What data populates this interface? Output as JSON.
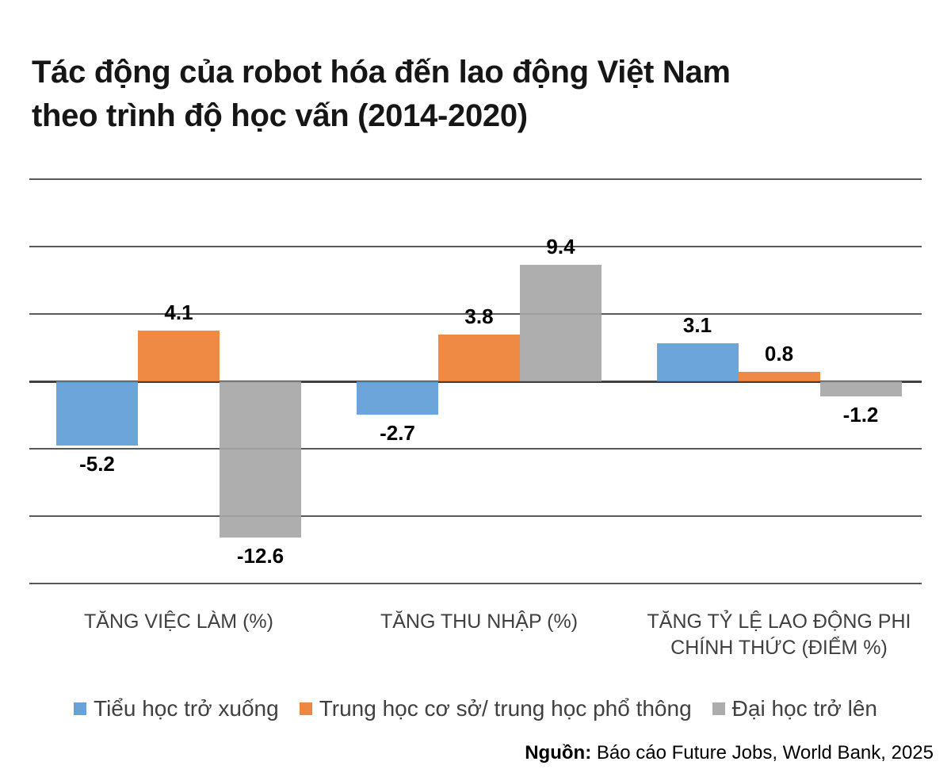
{
  "title": {
    "line1": "Tác động của robot hóa đến lao động Việt Nam",
    "line2": "theo trình độ học vấn (2014-2020)"
  },
  "source": {
    "label": "Nguồn:",
    "text": " Báo cáo Future Jobs, World Bank, 2025"
  },
  "chart_data": {
    "type": "bar",
    "title": "Tác động của robot hóa đến lao động Việt Nam theo trình độ học vấn (2014-2020)",
    "categories": [
      "TĂNG VIỆC LÀM (%)",
      "TĂNG THU NHẬP (%)",
      "TĂNG TỶ LỆ LAO ĐỘNG PHI\nCHÍNH THỨC (ĐIỂM %)"
    ],
    "series": [
      {
        "name": "Tiểu học trở xuống",
        "color": "#5B9BD5",
        "values": [
          -5.2,
          -2.7,
          3.1
        ]
      },
      {
        "name": "Trung học cơ sở/ trung học phổ thông",
        "color": "#ED7D31",
        "values": [
          4.1,
          3.8,
          0.8
        ]
      },
      {
        "name": "Đại học trở lên",
        "color": "#A5A5A5",
        "values": [
          -12.6,
          9.4,
          -1.2
        ]
      }
    ],
    "data_labels_visible": true,
    "value_format_decimals": 1,
    "xlabel": "",
    "ylabel": "",
    "y_axis": {
      "tick_labels_visible": false,
      "approx_range": [
        -16.3,
        16.3
      ],
      "gridline_count": 7,
      "zero_line_index": 3
    },
    "legend_position": "bottom",
    "colors": {
      "gridline": "#595959",
      "zero_line": "#404040",
      "data_label_text": "#000000",
      "category_text": "#404040",
      "legend_text": "#404040",
      "background": "#ffffff"
    }
  }
}
